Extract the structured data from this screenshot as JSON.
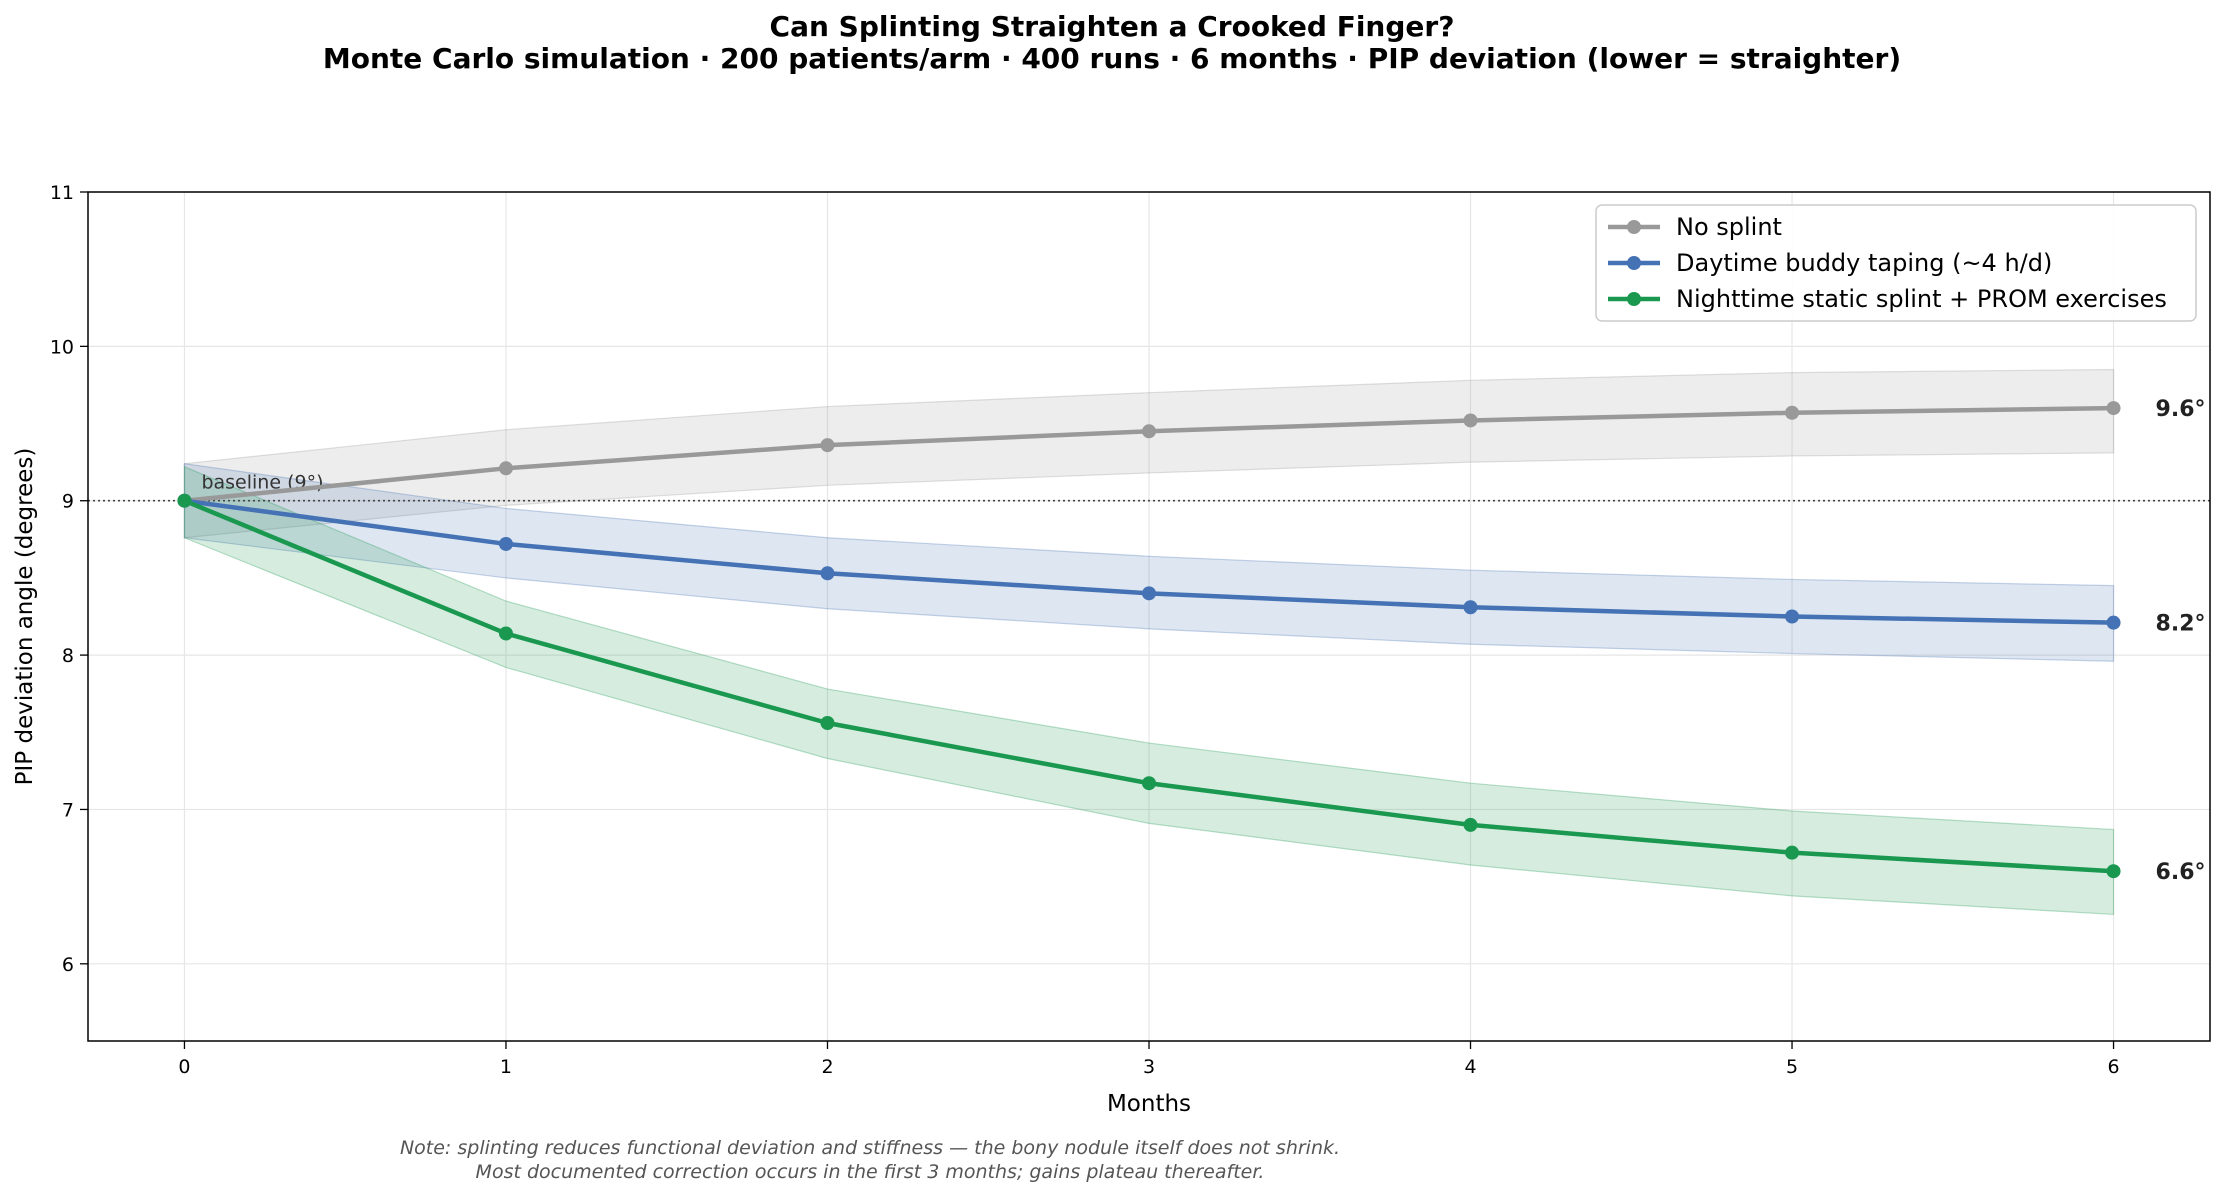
{
  "chart_data": {
    "type": "line",
    "title": "Can Splinting Straighten a Crooked Finger?",
    "subtitle": "Monte Carlo simulation · 200 patients/arm · 400 runs · 6 months · PIP deviation (lower = straighter)",
    "xlabel": "Months",
    "ylabel": "PIP deviation angle (degrees)",
    "x": [
      0,
      1,
      2,
      3,
      4,
      5,
      6
    ],
    "xlim": [
      -0.3,
      6.3
    ],
    "ylim": [
      5.5,
      11
    ],
    "xticks": [
      0,
      1,
      2,
      3,
      4,
      5,
      6
    ],
    "yticks": [
      6,
      7,
      8,
      9,
      10,
      11
    ],
    "grid": true,
    "legend_position": "top-right",
    "baseline": {
      "value": 9,
      "label": "baseline (9°)"
    },
    "series": [
      {
        "name": "No splint",
        "color": "#999999",
        "values": [
          9.0,
          9.21,
          9.36,
          9.45,
          9.52,
          9.57,
          9.6
        ],
        "band_upper": [
          9.24,
          9.46,
          9.61,
          9.7,
          9.78,
          9.83,
          9.85
        ],
        "band_lower": [
          8.76,
          8.97,
          9.1,
          9.18,
          9.25,
          9.29,
          9.31
        ],
        "end_label": "9.6°"
      },
      {
        "name": "Daytime buddy taping (~4 h/d)",
        "color": "#4472b4",
        "values": [
          9.0,
          8.72,
          8.53,
          8.4,
          8.31,
          8.25,
          8.21
        ],
        "band_upper": [
          9.24,
          8.95,
          8.76,
          8.64,
          8.55,
          8.49,
          8.45
        ],
        "band_lower": [
          8.76,
          8.5,
          8.3,
          8.17,
          8.07,
          8.01,
          7.96
        ],
        "end_label": "8.2°"
      },
      {
        "name": "Nighttime static splint + PROM exercises",
        "color": "#1a9850",
        "values": [
          9.0,
          8.14,
          7.56,
          7.17,
          6.9,
          6.72,
          6.6
        ],
        "band_upper": [
          9.22,
          8.35,
          7.78,
          7.43,
          7.17,
          6.99,
          6.87
        ],
        "band_lower": [
          8.76,
          7.92,
          7.33,
          6.91,
          6.64,
          6.44,
          6.32
        ],
        "end_label": "6.6°"
      }
    ],
    "notes": [
      "Note: splinting reduces functional deviation and stiffness — the bony nodule itself does not shrink.",
      "Most documented correction occurs in the first 3 months; gains plateau thereafter."
    ]
  }
}
